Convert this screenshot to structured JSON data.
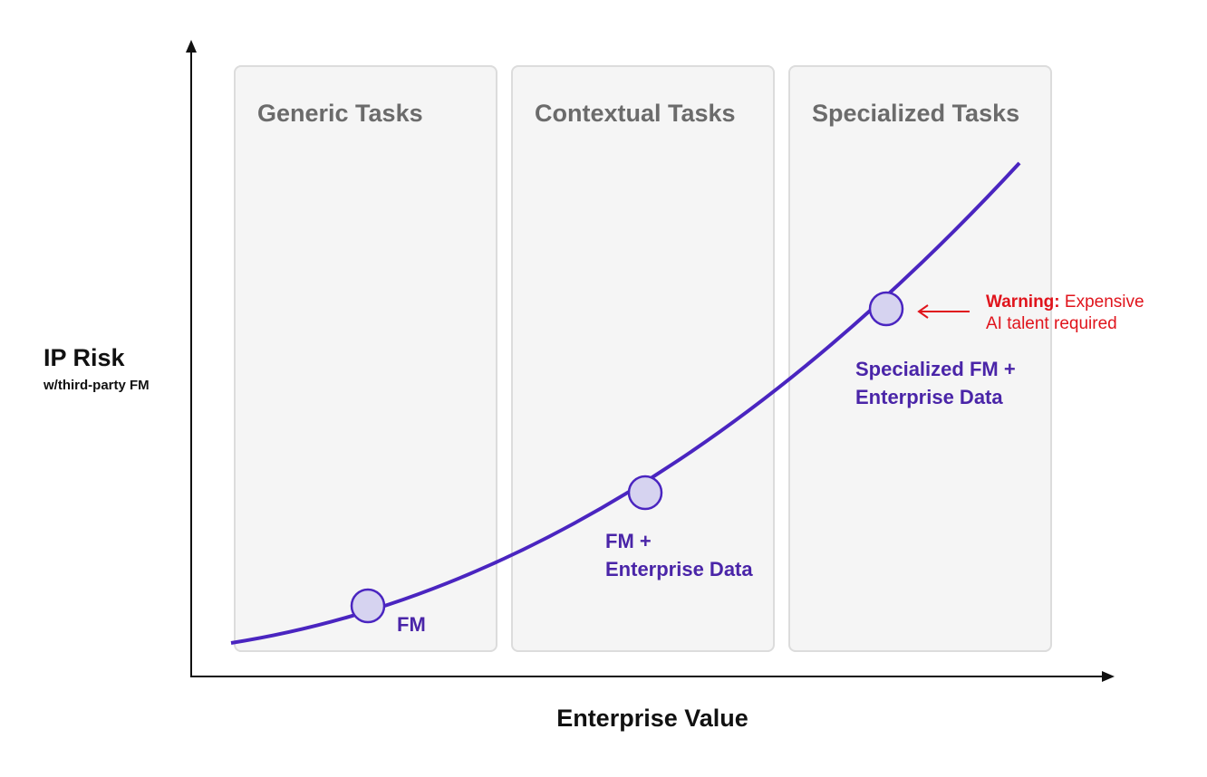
{
  "diagram": {
    "columns": [
      {
        "title": "Generic Tasks"
      },
      {
        "title": "Contextual Tasks"
      },
      {
        "title": "Specialized Tasks"
      }
    ],
    "y_axis": {
      "title": "IP Risk",
      "subtitle": "w/third-party FM"
    },
    "x_axis": {
      "title": "Enterprise Value"
    },
    "points": [
      {
        "label_line1": "FM",
        "label_line2": ""
      },
      {
        "label_line1": "FM +",
        "label_line2": "Enterprise Data"
      },
      {
        "label_line1": "Specialized FM +",
        "label_line2": "Enterprise Data"
      }
    ],
    "warning": {
      "prefix": "Warning:",
      "text_line1": "Expensive",
      "text_line2": "AI talent required"
    },
    "colors": {
      "curve": "#4a25c0",
      "point_fill": "#d6d3f0",
      "warning": "#e0141c",
      "panel_bg": "#f5f5f5",
      "panel_border": "#dcdcdc"
    }
  }
}
